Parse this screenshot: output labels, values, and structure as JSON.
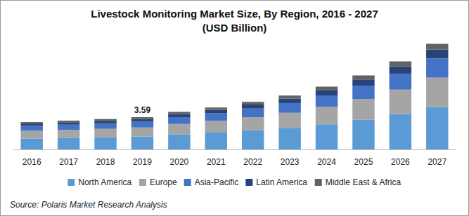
{
  "chart_data": {
    "type": "bar",
    "title": "Livestock Monitoring Market Size, By Region, 2016 - 2027",
    "subtitle": "(USD Billion)",
    "source": "Source: Polaris Market Research Analysis",
    "stacked": true,
    "legend": "bottom",
    "grid": false,
    "tick_labels": "x",
    "ylim": [
      0,
      12.5
    ],
    "categories": [
      "2016",
      "2017",
      "2018",
      "2019",
      "2020",
      "2021",
      "2022",
      "2023",
      "2024",
      "2025",
      "2026",
      "2027"
    ],
    "annotations": [
      {
        "x": "2019",
        "text": "3.59"
      }
    ],
    "series": [
      {
        "name": "North America",
        "color": "#5b9bd5",
        "values": [
          1.22,
          1.28,
          1.35,
          1.44,
          1.67,
          1.87,
          2.12,
          2.4,
          2.8,
          3.3,
          3.92,
          4.7
        ]
      },
      {
        "name": "Europe",
        "color": "#a5a5a5",
        "values": [
          0.85,
          0.89,
          0.94,
          1.0,
          1.17,
          1.31,
          1.48,
          1.68,
          1.96,
          2.31,
          2.74,
          3.3
        ]
      },
      {
        "name": "Asia-Pacific",
        "color": "#4472c4",
        "values": [
          0.55,
          0.58,
          0.61,
          0.65,
          0.75,
          0.84,
          0.95,
          1.08,
          1.26,
          1.49,
          1.76,
          2.12
        ]
      },
      {
        "name": "Latin America",
        "color": "#264478",
        "values": [
          0.26,
          0.27,
          0.29,
          0.31,
          0.35,
          0.4,
          0.45,
          0.51,
          0.6,
          0.7,
          0.83,
          1.0
        ]
      },
      {
        "name": "Middle East & Africa",
        "color": "#636363",
        "values": [
          0.17,
          0.18,
          0.19,
          0.19,
          0.23,
          0.25,
          0.3,
          0.33,
          0.38,
          0.45,
          0.55,
          0.64
        ]
      }
    ]
  }
}
